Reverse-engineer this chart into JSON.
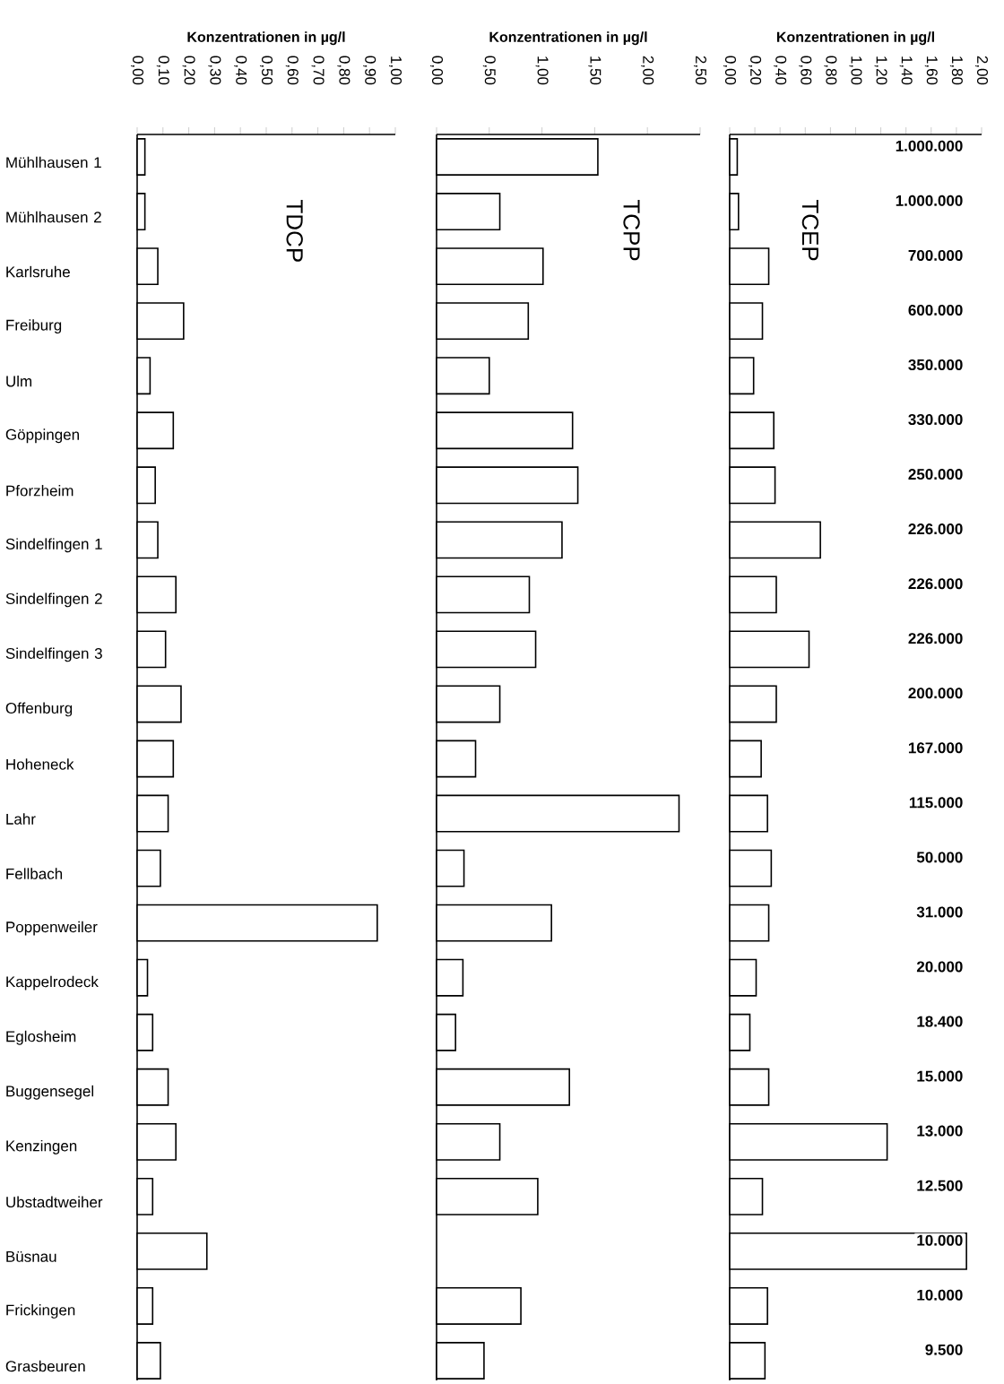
{
  "chart_data": [
    {
      "type": "bar",
      "orientation": "horizontal",
      "xlabel": "Konzentrationen in µg/l",
      "categories": [
        "Mühlhausen 1",
        "Mühlhausen 2",
        "Karlsruhe",
        "Freiburg",
        "Ulm",
        "Göppingen",
        "Pforzheim",
        "Sindelfingen 1",
        "Sindelfingen 2",
        "Sindelfingen 3",
        "Offenburg",
        "Hoheneck",
        "Lahr",
        "Fellbach",
        "Poppenweiler",
        "Kappelrodeck",
        "Eglosheim",
        "Buggensegel",
        "Kenzingen",
        "Ubstadtweiher",
        "Büsnau",
        "Frickingen",
        "Grasbeuren"
      ],
      "xlim": [
        0,
        1
      ],
      "xticks": [
        {
          "value": 0,
          "label": "0,00"
        },
        {
          "value": 0.1,
          "label": "0,10"
        },
        {
          "value": 0.2,
          "label": "0,20"
        },
        {
          "value": 0.3,
          "label": "0,30"
        },
        {
          "value": 0.4,
          "label": "0,40"
        },
        {
          "value": 0.5,
          "label": "0,50"
        },
        {
          "value": 0.6,
          "label": "0,60"
        },
        {
          "value": 0.7,
          "label": "0,70"
        },
        {
          "value": 0.8,
          "label": "0,80"
        },
        {
          "value": 0.9,
          "label": "0,90"
        },
        {
          "value": 1,
          "label": "1,00"
        }
      ],
      "series": [
        {
          "name": "TDCP",
          "color": "#ffffff",
          "values": [
            0.03,
            0.03,
            0.08,
            0.18,
            0.05,
            0.14,
            0.07,
            0.08,
            0.15,
            0.11,
            0.17,
            0.14,
            0.12,
            0.09,
            0.93,
            0.04,
            0.06,
            0.12,
            0.15,
            0.06,
            0.27,
            0.06,
            0.09
          ]
        }
      ]
    },
    {
      "type": "bar",
      "orientation": "horizontal",
      "xlabel": "Konzentrationen in µg/l",
      "tick_labels": "x",
      "categories": [
        null,
        null,
        null,
        null,
        null,
        null,
        null,
        null,
        null,
        null,
        null,
        null,
        null,
        null,
        null,
        null,
        null,
        null,
        null,
        null,
        null,
        null,
        null
      ],
      "xlim": [
        0,
        2.5
      ],
      "xticks": [
        {
          "value": 0,
          "label": "0,00"
        },
        {
          "value": 0.5,
          "label": "0,50"
        },
        {
          "value": 1,
          "label": "1,00"
        },
        {
          "value": 1.5,
          "label": "1,50"
        },
        {
          "value": 2,
          "label": "2,00"
        },
        {
          "value": 2.5,
          "label": "2,50"
        }
      ],
      "series": [
        {
          "name": "TCPP",
          "color": "#ffffff",
          "values": [
            1.53,
            0.6,
            1.01,
            0.87,
            0.5,
            1.29,
            1.34,
            1.19,
            0.88,
            0.94,
            0.6,
            0.37,
            2.3,
            0.26,
            1.09,
            0.25,
            0.18,
            1.26,
            0.6,
            0.96,
            null,
            0.8,
            0.45
          ]
        }
      ]
    },
    {
      "type": "bar",
      "orientation": "horizontal",
      "xlabel": "Konzentrationen in µg/l",
      "tick_labels": "x",
      "categories": [
        null,
        null,
        null,
        null,
        null,
        null,
        null,
        null,
        null,
        null,
        null,
        null,
        null,
        null,
        null,
        null,
        null,
        null,
        null,
        null,
        null,
        null,
        null
      ],
      "xlim": [
        0,
        2
      ],
      "xticks": [
        {
          "value": 0,
          "label": "0,00"
        },
        {
          "value": 0.2,
          "label": "0,20"
        },
        {
          "value": 0.4,
          "label": "0,40"
        },
        {
          "value": 0.6,
          "label": "0,60"
        },
        {
          "value": 0.8,
          "label": "0,80"
        },
        {
          "value": 1,
          "label": "1,00"
        },
        {
          "value": 1.2,
          "label": "1,20"
        },
        {
          "value": 1.4,
          "label": "1,40"
        },
        {
          "value": 1.6,
          "label": "1,60"
        },
        {
          "value": 1.8,
          "label": "1,80"
        },
        {
          "value": 2,
          "label": "2,00"
        }
      ],
      "series": [
        {
          "name": "TCEP",
          "color": "#ffffff",
          "values": [
            0.06,
            0.07,
            0.31,
            0.26,
            0.19,
            0.35,
            0.36,
            0.72,
            0.37,
            0.63,
            0.37,
            0.25,
            0.3,
            0.33,
            0.31,
            0.21,
            0.16,
            0.31,
            1.25,
            0.26,
            1.88,
            0.3,
            0.28
          ]
        }
      ],
      "annotations": [
        "1.000.000",
        "1.000.000",
        "700.000",
        "600.000",
        "350.000",
        "330.000",
        "250.000",
        "226.000",
        "226.000",
        "226.000",
        "200.000",
        "167.000",
        "115.000",
        "50.000",
        "31.000",
        "20.000",
        "18.400",
        "15.000",
        "13.000",
        "12.500",
        "10.000",
        "10.000",
        "9.500"
      ]
    }
  ]
}
